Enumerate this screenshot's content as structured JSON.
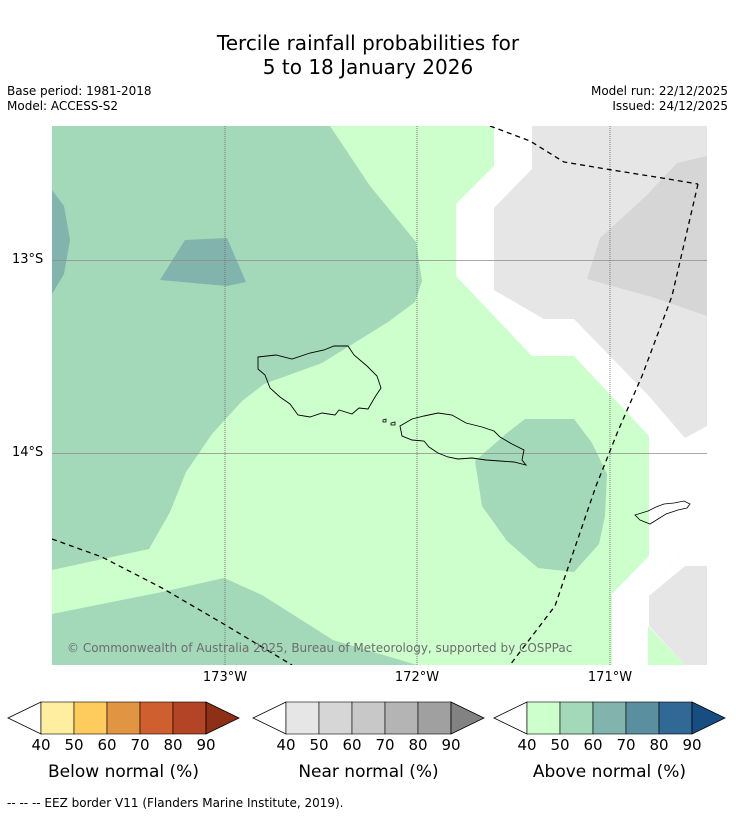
{
  "title": {
    "line1": "Tercile rainfall probabilities for",
    "line2": "5 to 18 January 2026"
  },
  "meta": {
    "base_period": "Base period: 1981-2018",
    "model": "Model: ACCESS-S2",
    "model_run": "Model run: 22/12/2025",
    "issued": "Issued: 24/12/2025"
  },
  "map": {
    "lat_labels": [
      "13°S",
      "14°S"
    ],
    "lon_labels": [
      "173°W",
      "172°W",
      "171°W"
    ],
    "copyright": "© Commonwealth of Australia 2025, Bureau of Meteorology, supported by COSPPac"
  },
  "colorbars": [
    {
      "label": "Below normal (%)",
      "ticks": [
        "40",
        "50",
        "60",
        "70",
        "80",
        "90"
      ],
      "colors": [
        "#ffeda0",
        "#fecc5c",
        "#e19542",
        "#cf5f2f",
        "#b34526",
        "#8e3015"
      ]
    },
    {
      "label": "Near normal (%)",
      "ticks": [
        "40",
        "50",
        "60",
        "70",
        "80",
        "90"
      ],
      "colors": [
        "#e6e6e6",
        "#d6d6d6",
        "#c8c8c8",
        "#b4b4b4",
        "#a0a0a0",
        "#828282"
      ]
    },
    {
      "label": "Above normal (%)",
      "ticks": [
        "40",
        "50",
        "60",
        "70",
        "80",
        "90"
      ],
      "colors": [
        "#ccffcc",
        "#a3d8b8",
        "#80b4ad",
        "#5a8fa0",
        "#306896",
        "#184d82"
      ]
    }
  ],
  "footnote": "--  --  -- EEZ border V11 (Flanders Marine Institute, 2019)."
}
